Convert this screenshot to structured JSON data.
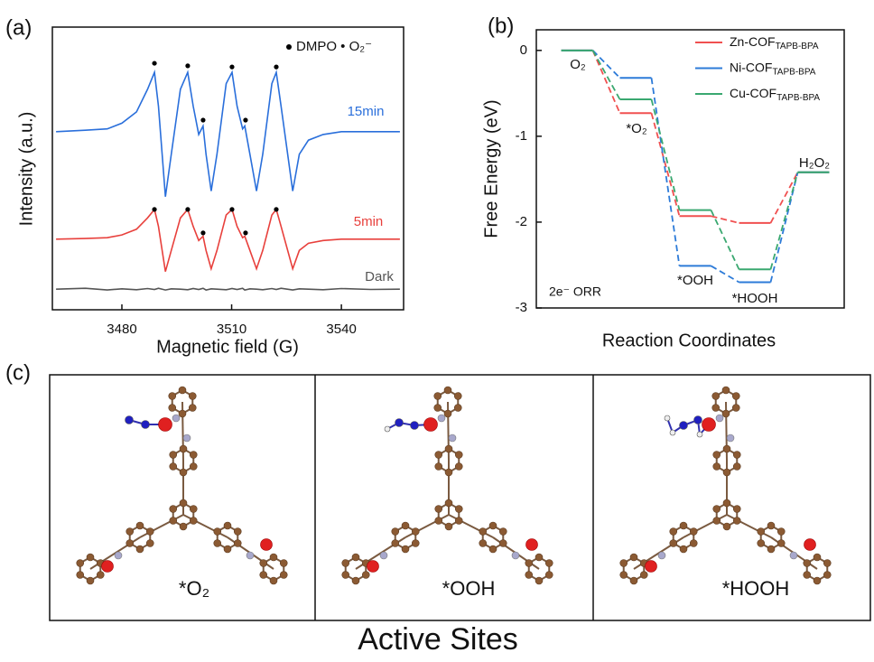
{
  "chart_data": [
    {
      "type": "line",
      "panel_label": "(a)",
      "xlabel": "Magnetic field (G)",
      "ylabel": "Intensity (a.u.)",
      "legend": "DMPO • O₂⁻",
      "xlim": [
        3461,
        3557
      ],
      "xticks": [
        3480,
        3510,
        3540
      ],
      "ylim": [
        0,
        100
      ],
      "x": [
        3462,
        3470,
        3476,
        3480,
        3484,
        3487,
        3488.9,
        3490,
        3491.9,
        3493.5,
        3496,
        3498,
        3499.5,
        3501,
        3502.2,
        3503,
        3504.4,
        3506,
        3508.5,
        3510.1,
        3511.5,
        3513,
        3513.6,
        3515,
        3516.8,
        3518.5,
        3521,
        3522.2,
        3523.5,
        3526.7,
        3528.5,
        3531,
        3535,
        3540,
        3548,
        3556
      ],
      "series": [
        {
          "name": "15min",
          "color": "#2a6fdb",
          "values": [
            63,
            63.5,
            64,
            66,
            70,
            78,
            84,
            72,
            40,
            55,
            78,
            84,
            72,
            62,
            65,
            55,
            42,
            55,
            80,
            84,
            72,
            64,
            65,
            55,
            42,
            55,
            80,
            84,
            72,
            42,
            55,
            60,
            62,
            63,
            63,
            63
          ]
        },
        {
          "name": "5min",
          "color": "#e8403c",
          "values": [
            25,
            25.2,
            25.5,
            26.5,
            28.5,
            32.5,
            35.5,
            29.5,
            13.5,
            21,
            32.5,
            35.5,
            29.5,
            24.5,
            26,
            21,
            14.5,
            21,
            33.5,
            35.5,
            29.5,
            25.5,
            26,
            21,
            14.5,
            21,
            33.5,
            35.5,
            29.5,
            14.5,
            21,
            23.5,
            24.5,
            25,
            25,
            25
          ]
        },
        {
          "name": "Dark",
          "color": "#555555",
          "values": [
            7.3,
            7.6,
            7.0,
            7.4,
            7.1,
            7.5,
            7.2,
            7.6,
            7.0,
            7.4,
            7.3,
            7.1,
            7.5,
            7.2,
            7.6,
            7.0,
            7.4,
            7.3,
            7.1,
            7.5,
            7.2,
            7.6,
            7.0,
            7.4,
            7.3,
            7.1,
            7.5,
            7.2,
            7.6,
            7.0,
            7.4,
            7.3,
            7.1,
            7.5,
            7.2,
            7.3
          ]
        }
      ],
      "markers": {
        "color": "#000000",
        "x": [
          3488.9,
          3498,
          3510.1,
          3522.2,
          3502.2,
          3513.8,
          3488.9,
          3498,
          3510.1,
          3522.2,
          3502.2,
          3513.8
        ],
        "values": [
          87.2,
          86.3,
          85.9,
          85.9,
          67.1,
          67.1,
          35.5,
          35.5,
          35.5,
          35.5,
          27.2,
          27.2
        ]
      }
    },
    {
      "type": "step",
      "panel_label": "(b)",
      "xlabel": "Reaction Coordinates",
      "ylabel": "Free Energy (eV)",
      "annotation": "2e⁻ ORR",
      "categories": [
        "O₂",
        "*O₂",
        "*OOH",
        "*HOOH",
        "H₂O₂"
      ],
      "ylim": [
        -3,
        0.24
      ],
      "yticks": [
        0,
        -1,
        -2,
        -3
      ],
      "series": [
        {
          "name": "Zn-COF",
          "name_sub": "TAPB-BPA",
          "color": "#f05050",
          "values": [
            0,
            -0.73,
            -1.93,
            -2.01,
            -1.42
          ]
        },
        {
          "name": "Ni-COF",
          "name_sub": "TAPB-BPA",
          "color": "#2d7bd8",
          "values": [
            0,
            -0.32,
            -2.51,
            -2.7,
            -1.42
          ]
        },
        {
          "name": "Cu-COF",
          "name_sub": "TAPB-BPA",
          "color": "#3aa870",
          "values": [
            0,
            -0.57,
            -1.86,
            -2.55,
            -1.42
          ]
        }
      ]
    }
  ],
  "panel_c": {
    "label": "(c)",
    "sites": [
      "*O₂",
      "*OOH",
      "*HOOH"
    ],
    "title": "Active Sites"
  }
}
